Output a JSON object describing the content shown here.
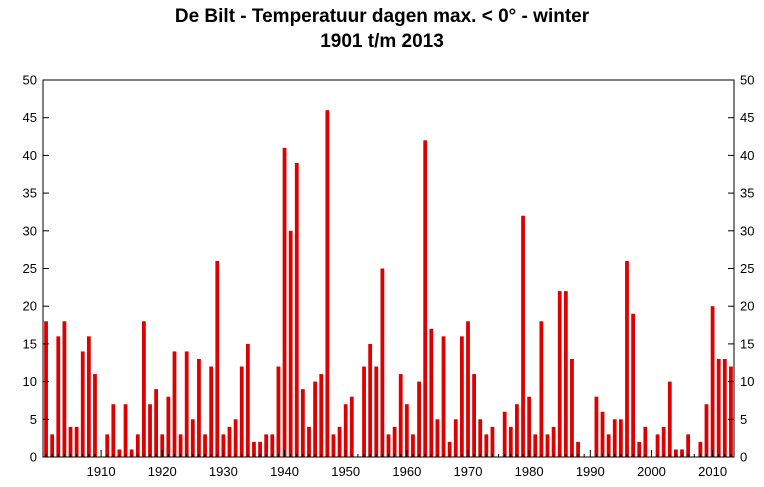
{
  "chart_data": {
    "type": "bar",
    "title": "De Bilt - Temperatuur dagen max. < 0° - winter",
    "subtitle": "1901 t/m 2013",
    "xlabel": "",
    "ylabel": "",
    "ylim": [
      0,
      50
    ],
    "yticks": [
      0,
      5,
      10,
      15,
      20,
      25,
      30,
      35,
      40,
      45,
      50
    ],
    "xticks": [
      1910,
      1920,
      1930,
      1940,
      1950,
      1960,
      1970,
      1980,
      1990,
      2000,
      2010
    ],
    "xlim": [
      1900.5,
      2013.5
    ],
    "grid": false,
    "right_axis": true,
    "bar_color": "#dd0000",
    "x": [
      1901,
      1902,
      1903,
      1904,
      1905,
      1906,
      1907,
      1908,
      1909,
      1910,
      1911,
      1912,
      1913,
      1914,
      1915,
      1916,
      1917,
      1918,
      1919,
      1920,
      1921,
      1922,
      1923,
      1924,
      1925,
      1926,
      1927,
      1928,
      1929,
      1930,
      1931,
      1932,
      1933,
      1934,
      1935,
      1936,
      1937,
      1938,
      1939,
      1940,
      1941,
      1942,
      1943,
      1944,
      1945,
      1946,
      1947,
      1948,
      1949,
      1950,
      1951,
      1952,
      1953,
      1954,
      1955,
      1956,
      1957,
      1958,
      1959,
      1960,
      1961,
      1962,
      1963,
      1964,
      1965,
      1966,
      1967,
      1968,
      1969,
      1970,
      1971,
      1972,
      1973,
      1974,
      1975,
      1976,
      1977,
      1978,
      1979,
      1980,
      1981,
      1982,
      1983,
      1984,
      1985,
      1986,
      1987,
      1988,
      1989,
      1990,
      1991,
      1992,
      1993,
      1994,
      1995,
      1996,
      1997,
      1998,
      1999,
      2000,
      2001,
      2002,
      2003,
      2004,
      2005,
      2006,
      2007,
      2008,
      2009,
      2010,
      2011,
      2012,
      2013
    ],
    "values": [
      18,
      3,
      16,
      18,
      4,
      4,
      14,
      16,
      11,
      0,
      3,
      7,
      1,
      7,
      1,
      3,
      18,
      7,
      9,
      3,
      8,
      14,
      3,
      14,
      5,
      13,
      3,
      12,
      26,
      3,
      4,
      5,
      12,
      15,
      2,
      2,
      3,
      3,
      12,
      41,
      30,
      39,
      9,
      4,
      10,
      11,
      46,
      3,
      4,
      7,
      8,
      0,
      12,
      15,
      12,
      25,
      3,
      4,
      11,
      7,
      3,
      10,
      42,
      17,
      5,
      16,
      2,
      5,
      16,
      18,
      11,
      5,
      3,
      4,
      0,
      6,
      4,
      7,
      32,
      8,
      3,
      18,
      3,
      4,
      22,
      22,
      13,
      2,
      0,
      0,
      8,
      6,
      3,
      5,
      5,
      26,
      19,
      2,
      4,
      0,
      3,
      4,
      10,
      1,
      1,
      3,
      0,
      2,
      7,
      20,
      13,
      13,
      12
    ]
  }
}
